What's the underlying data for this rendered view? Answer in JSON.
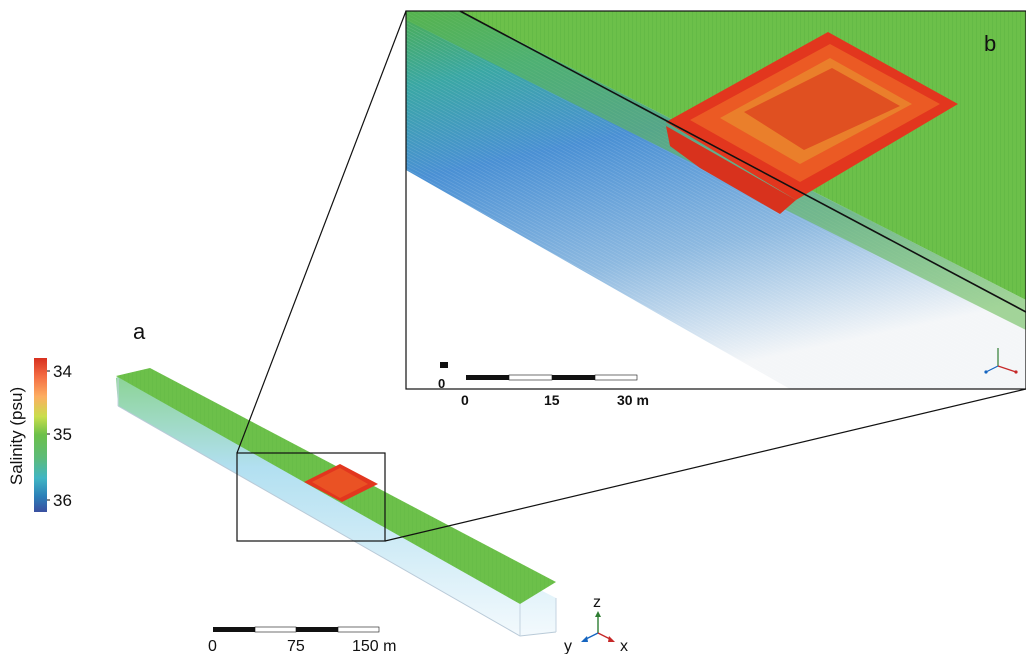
{
  "panels": {
    "a_label": "a",
    "b_label": "b"
  },
  "colorbar": {
    "label": "Salinity (psu)",
    "ticks": [
      "34",
      "35",
      "36"
    ],
    "colors": [
      "#d7301f",
      "#f46d43",
      "#fdae61",
      "#e6e94a",
      "#7fc241",
      "#5cb85c",
      "#41b6c4",
      "#2c7fb8",
      "#3a4fa0"
    ]
  },
  "scalebar_a": {
    "ticks": [
      "0",
      "75",
      "150 m"
    ]
  },
  "scalebar_b": {
    "ticks": [
      "0",
      "15",
      "30 m"
    ],
    "origin_label": "0"
  },
  "axes": {
    "z": "z",
    "y": "y",
    "x": "x"
  },
  "colors": {
    "surface_green": "#6cc04a",
    "surface_green_dark": "#4ea83a",
    "patch_red": "#e2361e",
    "patch_orange": "#f2782a",
    "depth_blue": "#4f8fd6",
    "depth_light": "#cfe6f5"
  }
}
